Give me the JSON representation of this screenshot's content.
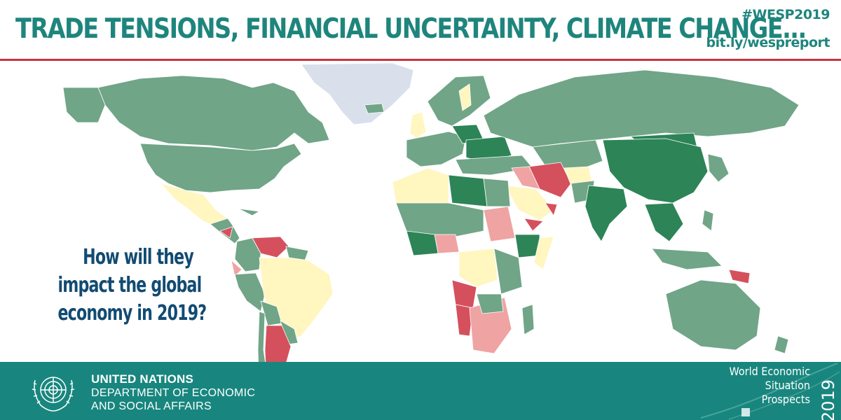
{
  "header": {
    "headline": "TRADE TENSIONS, FINANCIAL UNCERTAINTY, CLIMATE CHANGE...",
    "hashtag": "#WESP2019",
    "short_url": "bit.ly/wespreport"
  },
  "question": {
    "lines": [
      "How will they",
      "impact the global",
      "economy in 2019?"
    ]
  },
  "footer": {
    "org_name": "UNITED NATIONS",
    "dept_line1": "DEPARTMENT OF ECONOMIC",
    "dept_line2": "AND SOCIAL AFFAIRS",
    "report_lines": [
      "World Economic",
      "Situation",
      "Prospects"
    ],
    "report_year": "2019"
  },
  "colors": {
    "headline": "#1e857d",
    "accent_rule": "#c8343f",
    "question": "#124b72",
    "footer": "#18867e",
    "ocean": "#ffffff",
    "growth_high": "#2d8457",
    "growth_mid": "#70a587",
    "growth_low": "#fff6c0",
    "growth_weak": "#efa3a3",
    "contraction": "#d5505d",
    "no_data": "#d9e0ec"
  },
  "map": {
    "category_names": [
      "growth_high",
      "growth_mid",
      "growth_low",
      "growth_weak",
      "contraction",
      "no_data"
    ]
  }
}
